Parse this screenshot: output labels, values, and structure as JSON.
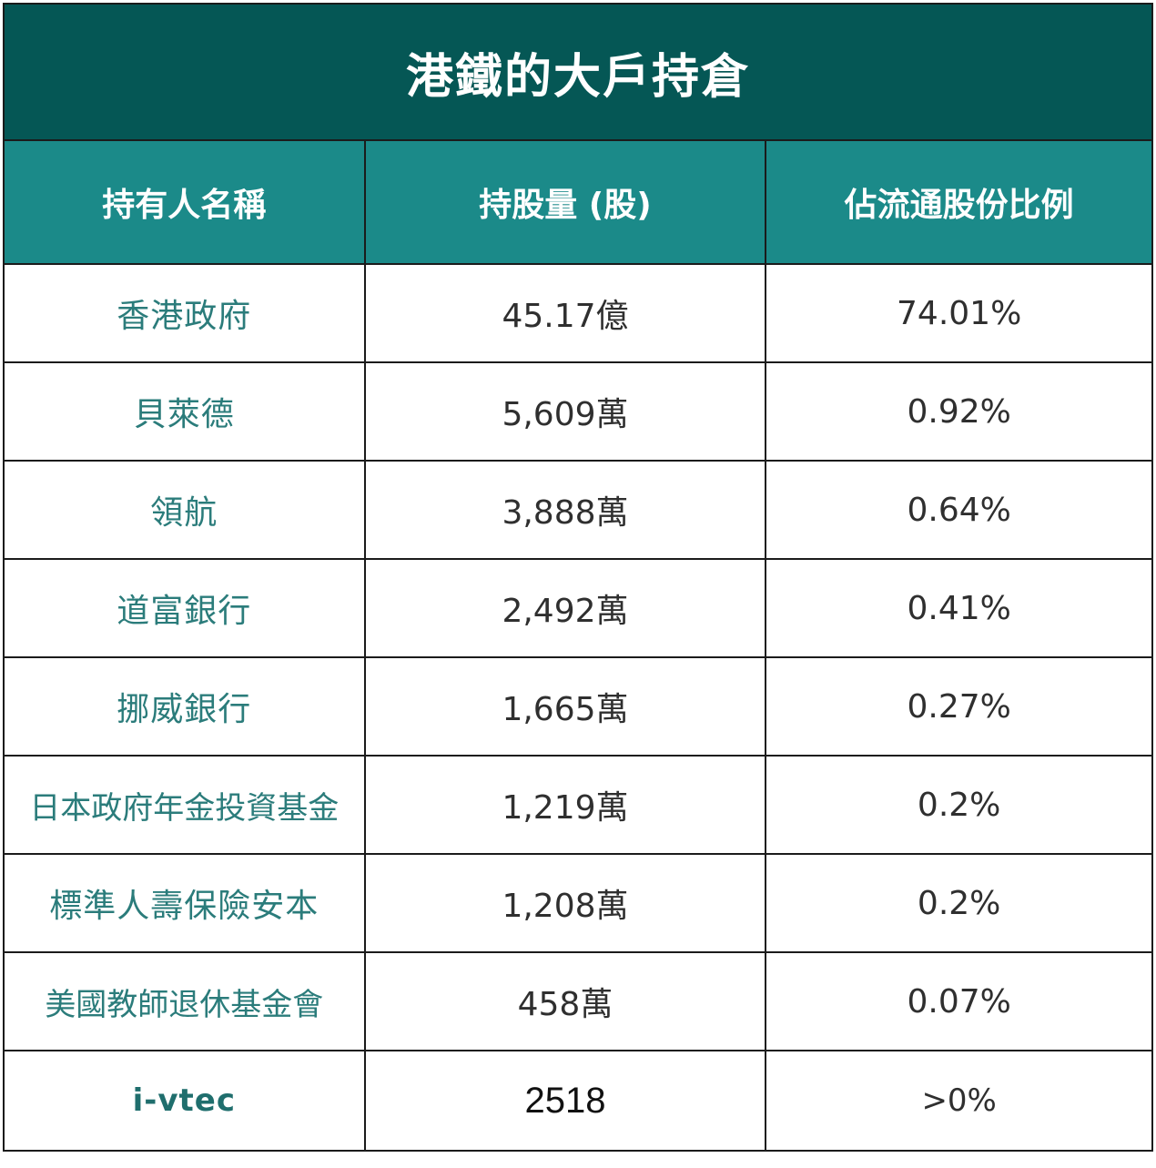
{
  "title": "港鐵的大戶持倉",
  "columns": {
    "holder": "持有人名稱",
    "shares": "持股量 (股)",
    "ratio": "佔流通股份比例"
  },
  "rows": [
    {
      "holder": "香港政府",
      "shares": "45.17億",
      "ratio": "74.01%"
    },
    {
      "holder": "貝萊德",
      "shares": "5,609萬",
      "ratio": "0.92%"
    },
    {
      "holder": "領航",
      "shares": "3,888萬",
      "ratio": "0.64%"
    },
    {
      "holder": "道富銀行",
      "shares": "2,492萬",
      "ratio": "0.41%"
    },
    {
      "holder": "挪威銀行",
      "shares": "1,665萬",
      "ratio": "0.27%"
    },
    {
      "holder": "日本政府年金投資基金",
      "shares": "1,219萬",
      "ratio": "0.2%"
    },
    {
      "holder": "標準人壽保險安本",
      "shares": "1,208萬",
      "ratio": "0.2%"
    },
    {
      "holder": "美國教師退休基金會",
      "shares": "458萬",
      "ratio": "0.07%"
    },
    {
      "holder": "i-vtec",
      "shares": "2518",
      "ratio": ">0%"
    }
  ],
  "colors": {
    "title_bg": "#055755",
    "header_bg": "#1b8a89",
    "holder_text": "#2b7c7b"
  }
}
